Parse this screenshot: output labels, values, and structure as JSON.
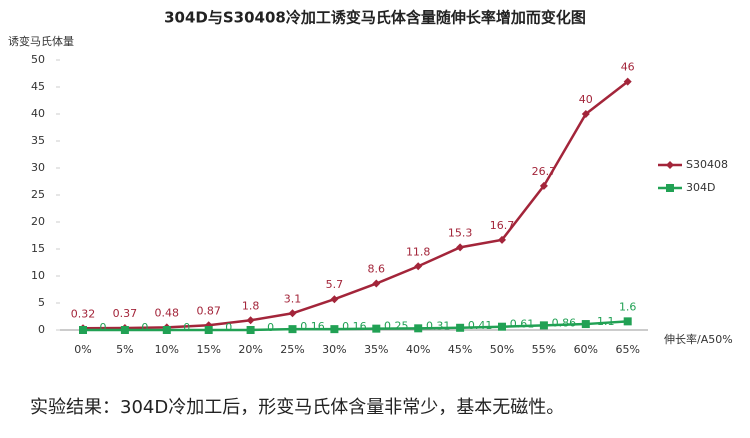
{
  "chart_data": {
    "type": "line",
    "title": "304D与S30408冷加工诱变马氏体含量随伸长率增加而变化图",
    "y_label": "诱变马氏体量",
    "x_label": "伸长率/A50%",
    "categories": [
      "0%",
      "5%",
      "10%",
      "15%",
      "20%",
      "25%",
      "30%",
      "35%",
      "40%",
      "45%",
      "50%",
      "55%",
      "60%",
      "65%"
    ],
    "series": [
      {
        "name": "S30408",
        "color": "#a3253a",
        "marker": "diamond",
        "values": [
          0.32,
          0.37,
          0.48,
          0.87,
          1.8,
          3.1,
          5.7,
          8.6,
          11.8,
          15.3,
          16.7,
          26.7,
          40,
          46
        ]
      },
      {
        "name": "304D",
        "color": "#21a154",
        "marker": "square",
        "values": [
          0,
          0,
          0,
          0,
          0,
          0.16,
          0.16,
          0.25,
          0.31,
          0.41,
          0.61,
          0.86,
          1.1,
          1.6
        ]
      }
    ],
    "ylim": [
      0,
      50
    ],
    "yticks": [
      0,
      5,
      10,
      15,
      20,
      25,
      30,
      35,
      40,
      45,
      50
    ],
    "legend": "right",
    "note": "实验结果：304D冷加工后，形变马氏体含量非常少，基本无磁性。"
  }
}
